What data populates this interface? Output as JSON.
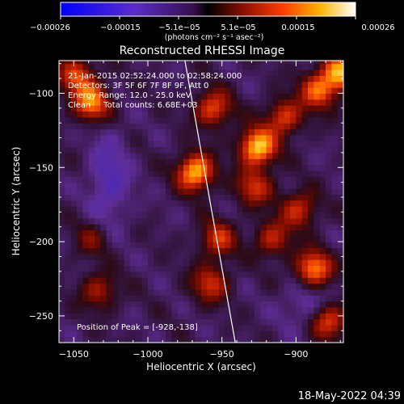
{
  "chart_data": {
    "type": "heatmap",
    "title": "Reconstructed RHESSI Image",
    "xlabel": "Heliocentric X (arcsec)",
    "ylabel": "Heliocentric Y (arcsec)",
    "xlim": [
      -1060,
      -868
    ],
    "ylim": [
      -268,
      -78
    ],
    "x_ticks": [
      -1050,
      -1000,
      -950,
      -900
    ],
    "x_tick_labels": [
      "−1050",
      "−1000",
      "−950",
      "−900"
    ],
    "y_ticks": [
      -100,
      -150,
      -200,
      -250
    ],
    "y_tick_labels": [
      "−100",
      "−150",
      "−200",
      "−250"
    ],
    "colorbar": {
      "colormap": "red-temperature with blue negatives",
      "vmin": -0.00026,
      "vmax": 0.00026,
      "tick_labels": [
        "−0.00026",
        "−0.00015",
        "−5.1e−05",
        "5.1e−05",
        "0.00015",
        "0.00026"
      ],
      "unit_label": "(photons cm⁻² s⁻¹ asec⁻²)"
    },
    "annotations": [
      "21-Jan-2015 02:52:24.000 to 02:58:24.000",
      "Detectors: 3F 5F 6F 7F 8F 9F, Att 0",
      "Energy Range: 12.0 - 25.0 keV",
      "Clean     Total counts: 6.68E+03"
    ],
    "peak": {
      "label": "Position of Peak = [-928,-138]",
      "x": -928,
      "y": -138
    },
    "bright_sources": [
      {
        "x": -928,
        "y": -138,
        "level": 1.0
      },
      {
        "x": -970,
        "y": -155,
        "level": 0.95
      },
      {
        "x": -1040,
        "y": -108,
        "level": 0.8
      },
      {
        "x": -1050,
        "y": -90,
        "level": 0.6
      },
      {
        "x": -872,
        "y": -88,
        "level": 0.85
      },
      {
        "x": -887,
        "y": -100,
        "level": 0.7
      },
      {
        "x": -958,
        "y": -112,
        "level": 0.65
      },
      {
        "x": -910,
        "y": -118,
        "level": 0.6
      },
      {
        "x": -930,
        "y": -165,
        "level": 0.55
      },
      {
        "x": -900,
        "y": -180,
        "level": 0.55
      },
      {
        "x": -955,
        "y": -200,
        "level": 0.55
      },
      {
        "x": -918,
        "y": -200,
        "level": 0.5
      },
      {
        "x": -890,
        "y": -220,
        "level": 0.8
      },
      {
        "x": -960,
        "y": -230,
        "level": 0.55
      },
      {
        "x": -1035,
        "y": -235,
        "level": 0.45
      },
      {
        "x": -1040,
        "y": -200,
        "level": 0.3
      },
      {
        "x": -880,
        "y": -255,
        "level": 0.65
      }
    ],
    "limb_line": {
      "points": [
        [
          -975,
          -78
        ],
        [
          -941,
          -268
        ]
      ]
    },
    "colors": {
      "background": "#000000",
      "text": "#ffffff",
      "limb": "#ffffff"
    }
  },
  "footer": {
    "timestamp": "18-May-2022 04:39"
  }
}
